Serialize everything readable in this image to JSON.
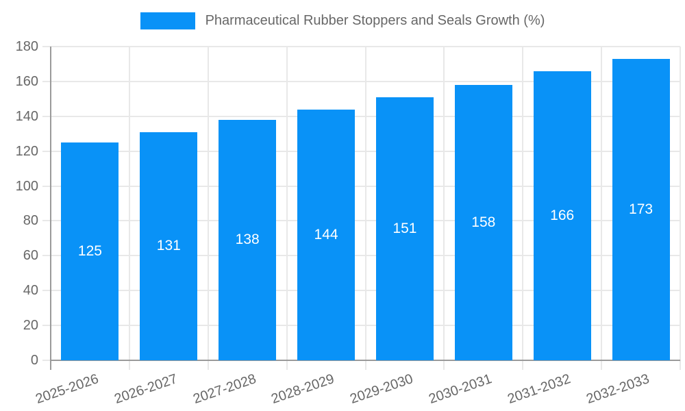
{
  "chart_data": {
    "type": "bar",
    "title": "Pharmaceutical Rubber Stoppers and Seals Growth (%)",
    "legend": {
      "label": "Pharmaceutical Rubber Stoppers and Seals Growth (%)",
      "position": "top"
    },
    "categories": [
      "2025-2026",
      "2026-2027",
      "2027-2028",
      "2028-2029",
      "2029-2030",
      "2030-2031",
      "2031-2032",
      "2032-2033"
    ],
    "values": [
      125,
      131,
      138,
      144,
      151,
      158,
      166,
      173
    ],
    "xlabel": "",
    "ylabel": "",
    "ylim": [
      0,
      180
    ],
    "ytick_step": 20,
    "yticks": [
      0,
      20,
      40,
      60,
      80,
      100,
      120,
      140,
      160,
      180
    ],
    "grid": true,
    "grid_vertical": true,
    "x_label_rotation_deg": -19,
    "value_labels_position": "center-of-bar",
    "colors": {
      "bar": "#0992f7",
      "value_label": "#ffffff",
      "axis": "#9a9a9a",
      "gridline": "#e8e8e8",
      "tick_text": "#676767"
    }
  }
}
